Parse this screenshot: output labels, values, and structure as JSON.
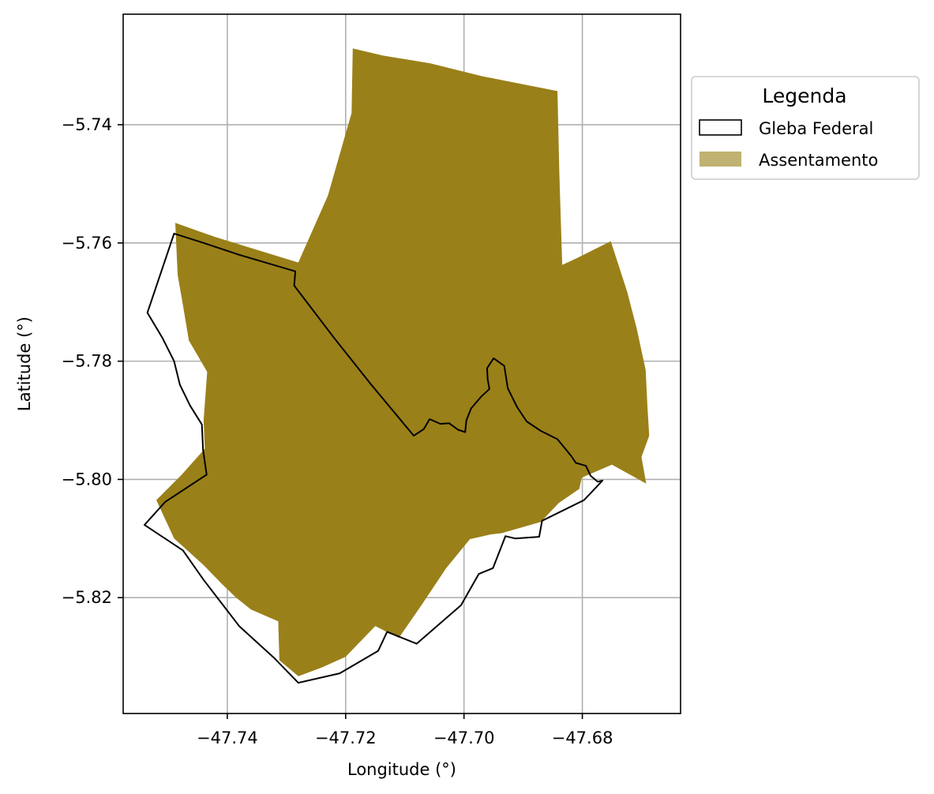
{
  "chart_data": {
    "type": "map",
    "xlabel": "Longitude (°)",
    "ylabel": "Latitude (°)",
    "xlim": [
      -47.7576,
      -47.6634
    ],
    "ylim": [
      -5.8396,
      -5.7213
    ],
    "xticks": [
      -47.74,
      -47.72,
      -47.7,
      -47.68
    ],
    "xtick_labels": [
      "−47.74",
      "−47.72",
      "−47.70",
      "−47.68"
    ],
    "yticks": [
      -5.74,
      -5.76,
      -5.78,
      -5.8,
      -5.82
    ],
    "ytick_labels": [
      "−5.74",
      "−5.76",
      "−5.78",
      "−5.80",
      "−5.82"
    ],
    "grid": true,
    "legend": {
      "title": "Legenda",
      "placement": "outside-upper-right",
      "entries": [
        "Gleba Federal",
        "Assentamento"
      ]
    },
    "colors": {
      "assentamento": "#9a8019",
      "assentamento_legend": "#c0b272",
      "gleba_edge": "#000000",
      "grid": "#b0b0b0"
    },
    "layers": [
      {
        "name": "Assentamento",
        "style": "filled",
        "coordinates": [
          [
            -47.7188,
            -5.7271
          ],
          [
            -47.7137,
            -5.7283
          ],
          [
            -47.7057,
            -5.7296
          ],
          [
            -47.6969,
            -5.7318
          ],
          [
            -47.6842,
            -5.7343
          ],
          [
            -47.6839,
            -5.748
          ],
          [
            -47.6834,
            -5.7637
          ],
          [
            -47.6808,
            -5.7625
          ],
          [
            -47.6752,
            -5.7597
          ],
          [
            -47.6724,
            -5.7683
          ],
          [
            -47.6708,
            -5.7745
          ],
          [
            -47.6693,
            -5.7815
          ],
          [
            -47.669,
            -5.7876
          ],
          [
            -47.6687,
            -5.7926
          ],
          [
            -47.67,
            -5.7962
          ],
          [
            -47.6692,
            -5.8007
          ],
          [
            -47.675,
            -5.7975
          ],
          [
            -47.6801,
            -5.7997
          ],
          [
            -47.6805,
            -5.8016
          ],
          [
            -47.684,
            -5.804
          ],
          [
            -47.687,
            -5.8072
          ],
          [
            -47.6937,
            -5.8091
          ],
          [
            -47.6955,
            -5.8093
          ],
          [
            -47.699,
            -5.8101
          ],
          [
            -47.703,
            -5.815
          ],
          [
            -47.707,
            -5.821
          ],
          [
            -47.711,
            -5.8268
          ],
          [
            -47.715,
            -5.8248
          ],
          [
            -47.72,
            -5.83
          ],
          [
            -47.724,
            -5.8318
          ],
          [
            -47.728,
            -5.8333
          ],
          [
            -47.7312,
            -5.8306
          ],
          [
            -47.7314,
            -5.824
          ],
          [
            -47.736,
            -5.822
          ],
          [
            -47.7385,
            -5.82
          ],
          [
            -47.741,
            -5.8176
          ],
          [
            -47.744,
            -5.8145
          ],
          [
            -47.749,
            -5.81
          ],
          [
            -47.752,
            -5.8035
          ],
          [
            -47.7477,
            -5.7992
          ],
          [
            -47.7438,
            -5.7948
          ],
          [
            -47.744,
            -5.79
          ],
          [
            -47.7434,
            -5.7818
          ],
          [
            -47.7465,
            -5.7765
          ],
          [
            -47.7475,
            -5.7705
          ],
          [
            -47.7484,
            -5.7654
          ],
          [
            -47.7488,
            -5.7566
          ],
          [
            -47.742,
            -5.759
          ],
          [
            -47.728,
            -5.7633
          ],
          [
            -47.723,
            -5.752
          ],
          [
            -47.719,
            -5.738
          ]
        ]
      },
      {
        "name": "Gleba Federal",
        "style": "outline",
        "coordinates": [
          [
            -47.749,
            -5.7584
          ],
          [
            -47.744,
            -5.76
          ],
          [
            -47.738,
            -5.762
          ],
          [
            -47.7285,
            -5.7648
          ],
          [
            -47.7287,
            -5.7672
          ],
          [
            -47.722,
            -5.776
          ],
          [
            -47.7159,
            -5.7837
          ],
          [
            -47.7085,
            -5.7926
          ],
          [
            -47.7068,
            -5.7915
          ],
          [
            -47.7058,
            -5.7898
          ],
          [
            -47.704,
            -5.7906
          ],
          [
            -47.7025,
            -5.7905
          ],
          [
            -47.701,
            -5.7916
          ],
          [
            -47.6998,
            -5.792
          ],
          [
            -47.6996,
            -5.79
          ],
          [
            -47.6988,
            -5.788
          ],
          [
            -47.6971,
            -5.786
          ],
          [
            -47.6957,
            -5.7847
          ],
          [
            -47.696,
            -5.7831
          ],
          [
            -47.6961,
            -5.7812
          ],
          [
            -47.695,
            -5.7795
          ],
          [
            -47.6932,
            -5.7808
          ],
          [
            -47.6926,
            -5.7846
          ],
          [
            -47.691,
            -5.7878
          ],
          [
            -47.6894,
            -5.7902
          ],
          [
            -47.687,
            -5.7918
          ],
          [
            -47.6842,
            -5.7932
          ],
          [
            -47.6819,
            -5.796
          ],
          [
            -47.6811,
            -5.7972
          ],
          [
            -47.6794,
            -5.7977
          ],
          [
            -47.6786,
            -5.7994
          ],
          [
            -47.6774,
            -5.8004
          ],
          [
            -47.6766,
            -5.8002
          ],
          [
            -47.6797,
            -5.8035
          ],
          [
            -47.6868,
            -5.807
          ],
          [
            -47.6873,
            -5.8097
          ],
          [
            -47.6913,
            -5.81
          ],
          [
            -47.693,
            -5.8096
          ],
          [
            -47.6951,
            -5.815
          ],
          [
            -47.6975,
            -5.816
          ],
          [
            -47.7005,
            -5.8213
          ],
          [
            -47.708,
            -5.8278
          ],
          [
            -47.713,
            -5.8258
          ],
          [
            -47.7145,
            -5.829
          ],
          [
            -47.721,
            -5.8328
          ],
          [
            -47.728,
            -5.8344
          ],
          [
            -47.732,
            -5.8303
          ],
          [
            -47.738,
            -5.8248
          ],
          [
            -47.744,
            -5.817
          ],
          [
            -47.7475,
            -5.812
          ],
          [
            -47.754,
            -5.8077
          ],
          [
            -47.7505,
            -5.8038
          ],
          [
            -47.7435,
            -5.7992
          ],
          [
            -47.7441,
            -5.795
          ],
          [
            -47.7443,
            -5.7907
          ],
          [
            -47.7463,
            -5.7875
          ],
          [
            -47.748,
            -5.784
          ],
          [
            -47.749,
            -5.78
          ],
          [
            -47.751,
            -5.776
          ],
          [
            -47.7535,
            -5.7718
          ]
        ]
      }
    ]
  }
}
